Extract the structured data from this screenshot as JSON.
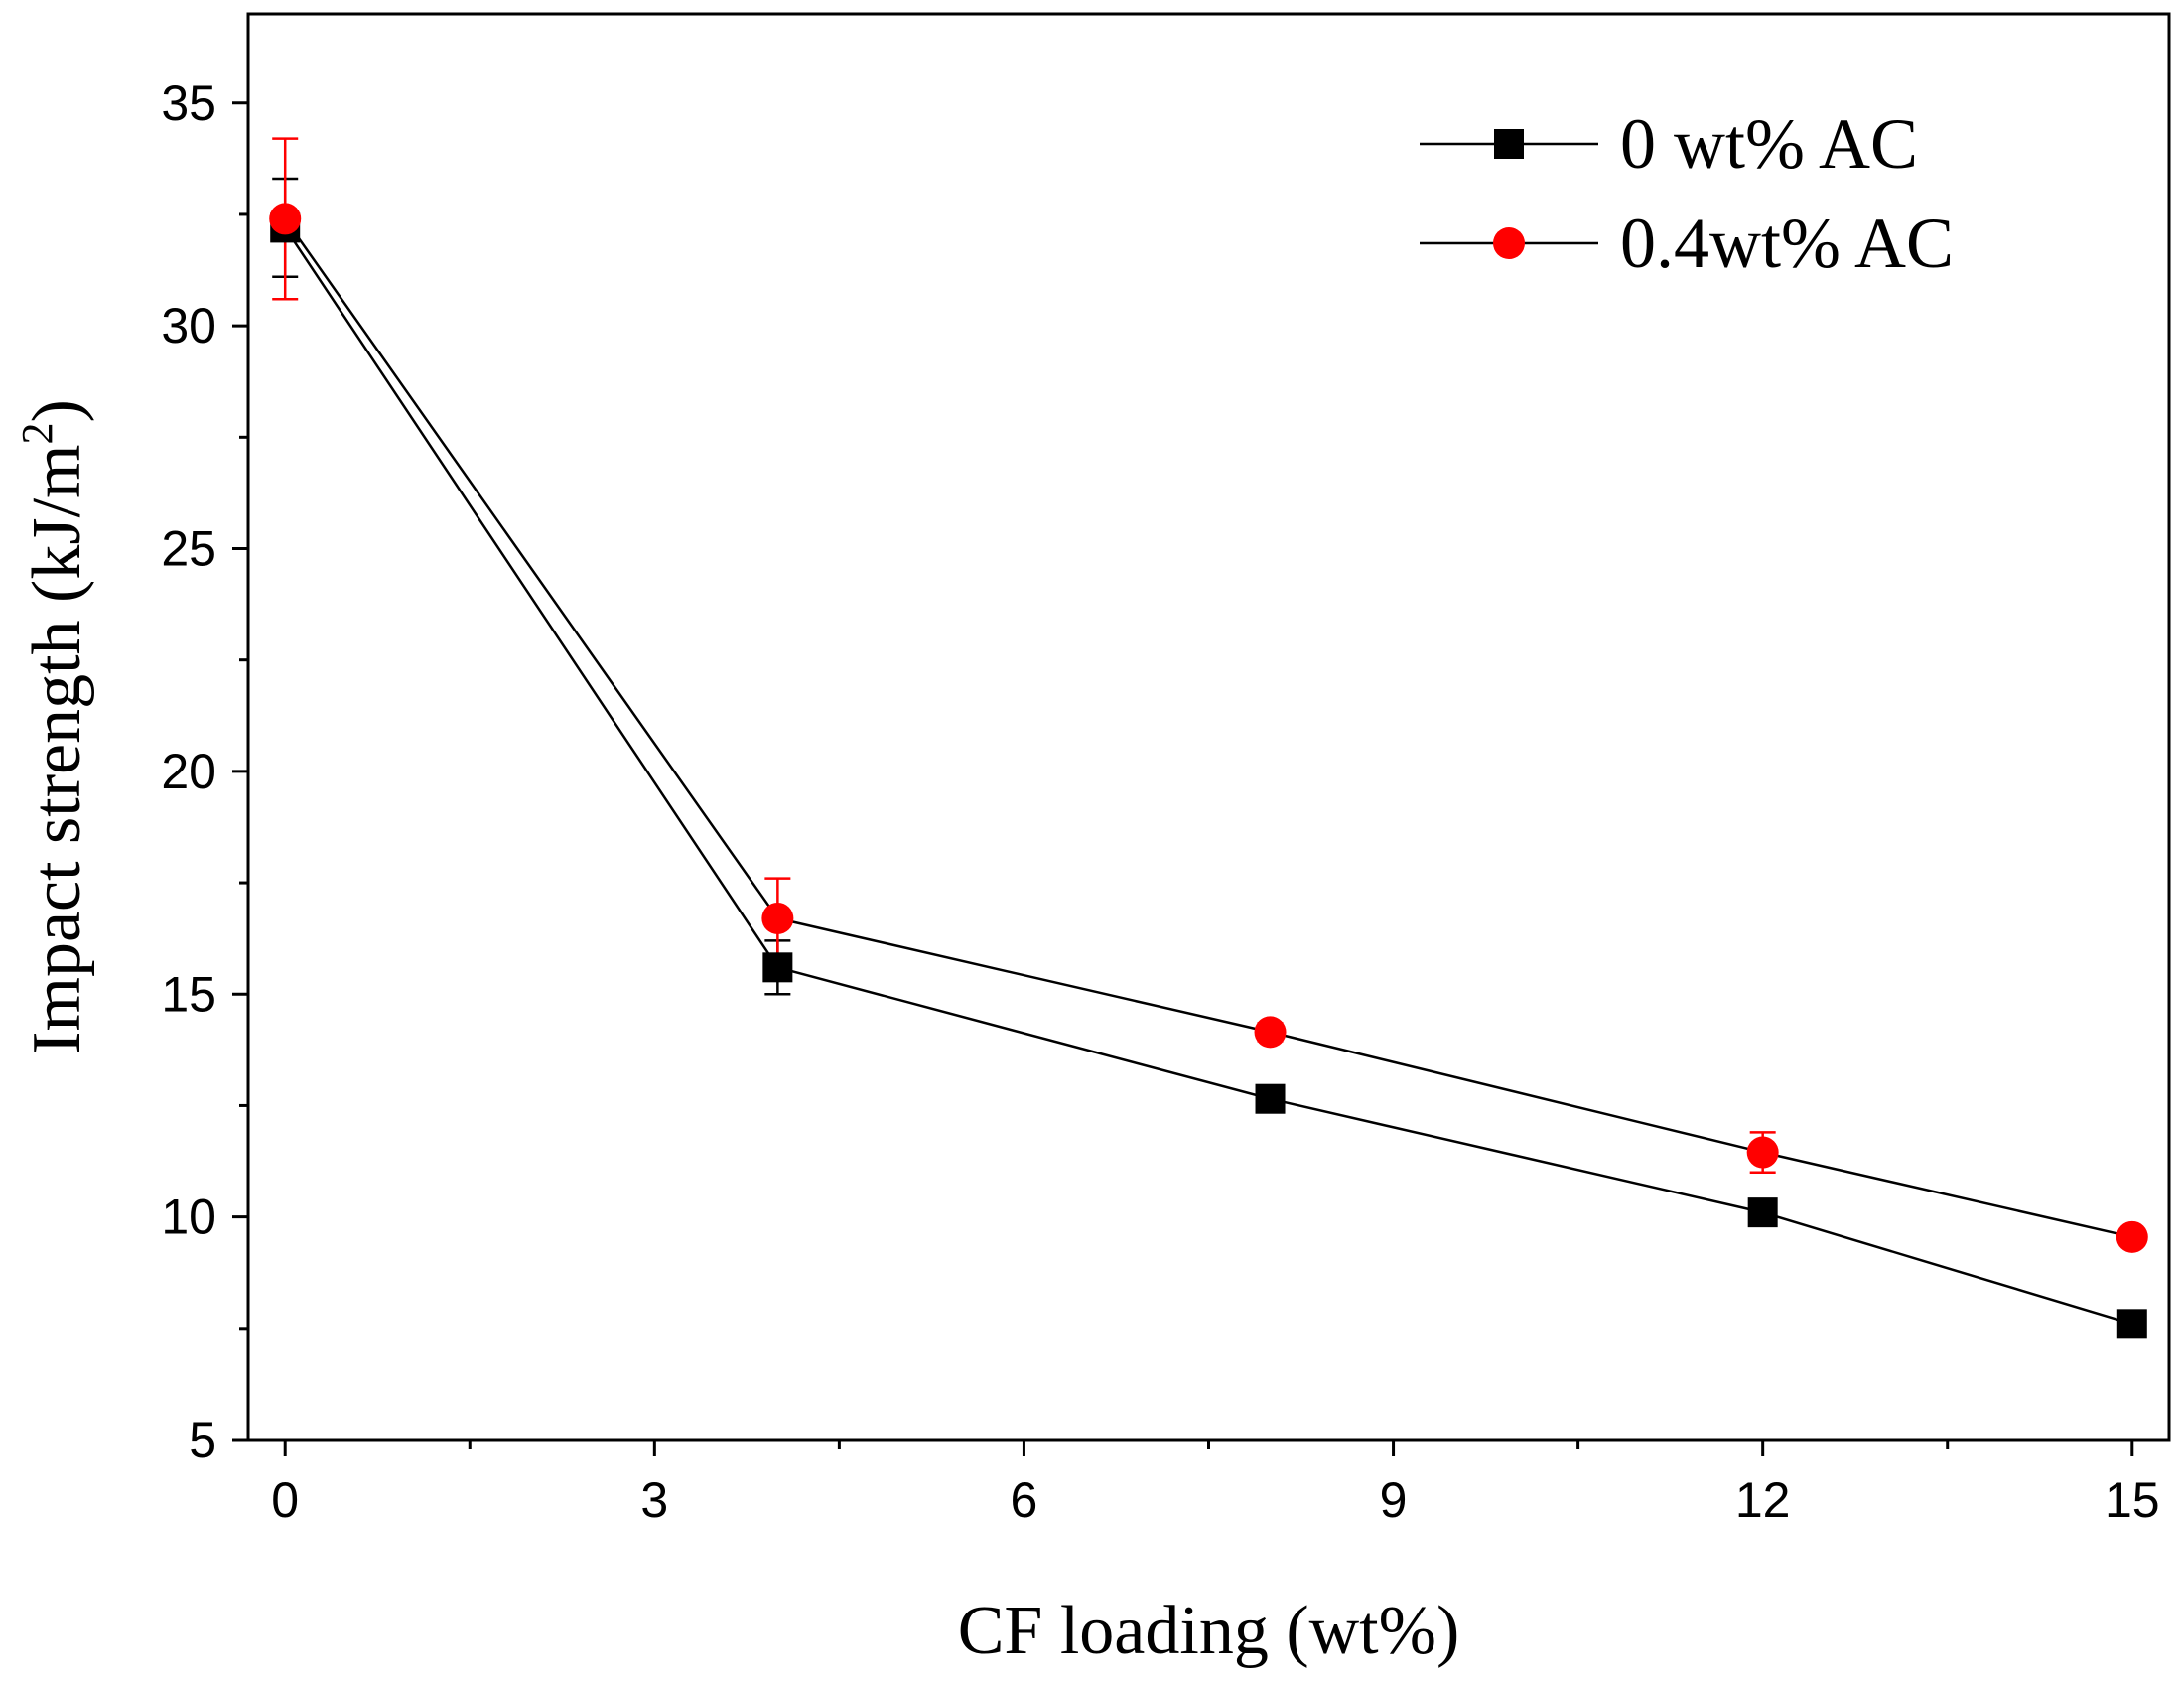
{
  "chart_data": {
    "type": "line",
    "title": "",
    "xlabel": "CF loading (wt%)",
    "ylabel": "Impact strength (kJ/m",
    "ylabel_sup": "2",
    "ylabel_close": ")",
    "xlim": [
      -0.3,
      15.3
    ],
    "ylim": [
      5,
      37
    ],
    "xticks": [
      0,
      3,
      6,
      9,
      12,
      15
    ],
    "xtick_labels": [
      "0",
      "3",
      "6",
      "9",
      "12",
      "15"
    ],
    "yticks": [
      5,
      10,
      15,
      20,
      25,
      30,
      35
    ],
    "ytick_labels": [
      "5",
      "10",
      "15",
      "20",
      "25",
      "30",
      "35"
    ],
    "x_minor_step": 1.5,
    "y_minor_step": 2.5,
    "grid": false,
    "legend_position": "top-right",
    "x": [
      0,
      4,
      8,
      12,
      15
    ],
    "series": [
      {
        "name": "0 wt% AC",
        "marker": "square",
        "color": "#000000",
        "line_color": "#000000",
        "values": [
          32.2,
          15.6,
          12.65,
          10.1,
          7.6
        ],
        "errors": [
          1.1,
          0.6,
          0.15,
          0.2,
          0.15
        ]
      },
      {
        "name": "0.4wt% AC",
        "marker": "circle",
        "color": "#ff0000",
        "line_color": "#000000",
        "values": [
          32.4,
          16.7,
          14.15,
          11.45,
          9.55
        ],
        "errors": [
          1.8,
          0.9,
          0.2,
          0.45,
          0.15
        ]
      }
    ]
  }
}
